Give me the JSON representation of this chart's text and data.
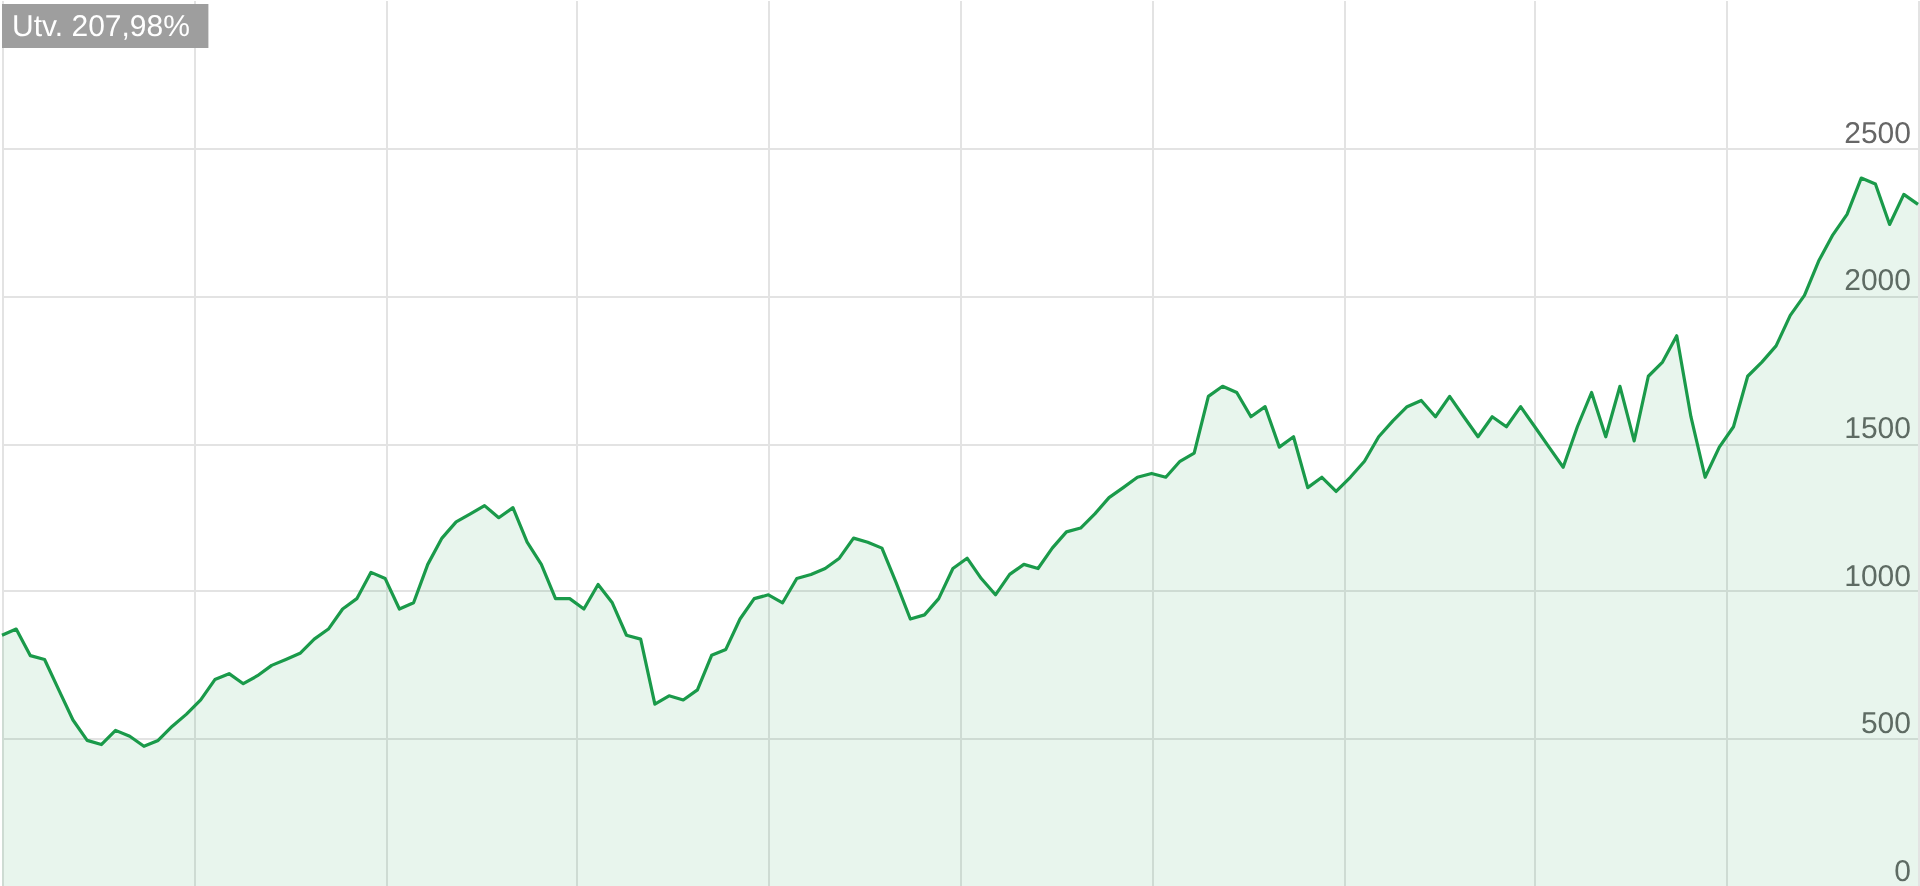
{
  "chart_data": {
    "type": "area",
    "annotations": [
      "Utv. 207,98%"
    ],
    "categories": [
      null,
      null,
      null,
      null,
      null,
      null,
      null,
      null,
      null,
      null,
      null,
      null,
      null,
      null,
      null,
      null,
      null,
      null,
      null,
      null,
      null,
      null,
      null,
      null,
      null,
      null,
      null,
      null,
      null,
      null,
      null,
      null,
      null,
      null,
      null,
      null,
      null,
      null,
      null,
      null,
      null,
      null,
      null,
      null,
      null,
      null,
      null,
      null,
      null,
      null,
      null,
      null,
      null,
      null,
      null,
      null,
      null,
      null,
      null,
      null,
      null,
      null,
      null,
      null,
      null,
      null,
      null,
      null,
      null,
      null,
      null,
      null,
      null,
      null,
      null,
      null,
      null,
      null,
      null,
      null,
      null,
      null,
      null,
      null,
      null,
      null,
      null,
      null,
      null,
      null,
      null,
      null,
      null,
      null,
      null,
      null,
      null,
      null,
      null,
      null,
      null,
      null,
      null,
      null,
      null,
      null,
      null,
      null,
      null,
      null,
      null,
      null,
      null,
      null,
      null,
      null,
      null,
      null,
      null,
      null,
      null,
      null,
      null,
      null,
      null,
      null,
      null,
      null,
      null,
      null,
      null,
      null,
      null,
      null,
      null,
      null
    ],
    "series": [
      {
        "color": "#1a9a4a",
        "values": [
          849,
          870,
          780,
          767,
          664,
          562,
          493,
          479,
          527,
          507,
          473,
          493,
          541,
          582,
          630,
          699,
          719,
          685,
          712,
          747,
          767,
          788,
          836,
          870,
          938,
          973,
          1062,
          1041,
          938,
          959,
          1089,
          1178,
          1233,
          1260,
          1288,
          1247,
          1281,
          1164,
          1089,
          973,
          973,
          938,
          1021,
          959,
          849,
          836,
          616,
          644,
          630,
          664,
          781,
          801,
          904,
          973,
          986,
          959,
          1041,
          1055,
          1075,
          1110,
          1178,
          1164,
          1144,
          1027,
          904,
          918,
          973,
          1075,
          1110,
          1041,
          986,
          1055,
          1089,
          1075,
          1144,
          1199,
          1212,
          1260,
          1315,
          1349,
          1384,
          1397,
          1384,
          1438,
          1466,
          1658,
          1692,
          1671,
          1589,
          1623,
          1486,
          1521,
          1349,
          1384,
          1336,
          1384,
          1438,
          1521,
          1575,
          1623,
          1644,
          1589,
          1658,
          1589,
          1521,
          1589,
          1555,
          1623,
          1555,
          1486,
          1418,
          1555,
          1671,
          1521,
          1692,
          1507,
          1726,
          1774,
          1863,
          1589,
          1384,
          1486,
          1555,
          1726,
          1774,
          1829,
          1932,
          2000,
          2116,
          2205,
          2274,
          2397,
          2377,
          2240,
          2342,
          2308
        ]
      }
    ],
    "ylim": [
      0,
      3000
    ],
    "yticks": [
      0,
      500,
      1000,
      1500,
      2000,
      2500
    ],
    "grid": true,
    "tick_labels": "y"
  }
}
